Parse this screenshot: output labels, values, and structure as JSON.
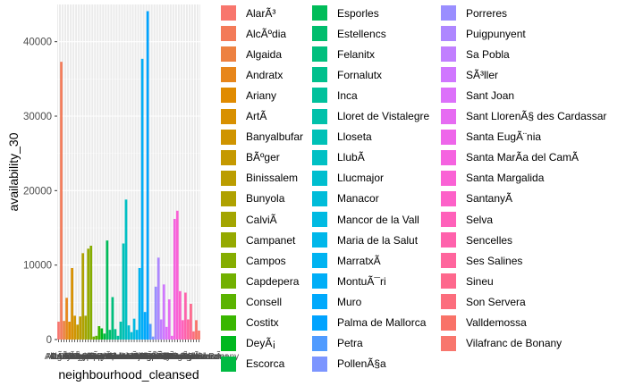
{
  "chart_data": {
    "type": "bar",
    "xlabel": "neighbourhood_cleansed",
    "ylabel": "availability_30",
    "ylim": [
      0,
      45000
    ],
    "yticks": [
      0,
      10000,
      20000,
      30000,
      40000
    ],
    "yticklabels": [
      "0",
      "10000",
      "20000",
      "30000",
      "40000"
    ],
    "grid": true,
    "legend_position": "right",
    "categories": [
      "AlarÃ³",
      "AlcÃºdia",
      "Algaida",
      "Andratx",
      "Ariany",
      "ArtÃ",
      "Banyalbufar",
      "BÃºger",
      "Binissalem",
      "Bunyola",
      "CalviÃ",
      "Campanet",
      "Campos",
      "Capdepera",
      "Consell",
      "Costitx",
      "DeyÃ¡",
      "Escorca",
      "Esporles",
      "Estellencs",
      "Felanitx",
      "Fornalutx",
      "Inca",
      "Lloret de Vistalegre",
      "Lloseta",
      "LlubÃ­",
      "Llucmajor",
      "Manacor",
      "Mancor de la Vall",
      "Maria de la Salut",
      "MarratxÃ­",
      "MontuÃ¯ri",
      "Muro",
      "Palma de Mallorca",
      "Petra",
      "PollenÃ§a",
      "Porreres",
      "Puigpunyent",
      "Sa Pobla",
      "SÃ³ller",
      "Sant Joan",
      "Sant LlorenÃ§ des Cardassar",
      "Santa EugÃ¨nia",
      "Santa MarÃ­a del CamÃ­",
      "Santa Margalida",
      "SantanyÃ­",
      "Selva",
      "Sencelles",
      "Ses Salines",
      "Sineu",
      "Son Servera",
      "Valldemossa",
      "Vilafranc de Bonany"
    ],
    "values": [
      2400,
      37300,
      2500,
      5600,
      2400,
      9600,
      3200,
      2000,
      3100,
      11600,
      3200,
      12200,
      12600,
      400,
      500,
      1800,
      1500,
      800,
      13300,
      1300,
      5700,
      1400,
      500,
      2400,
      12900,
      18800,
      1900,
      1000,
      2800,
      1300,
      9600,
      37700,
      3700,
      44100,
      2100,
      400,
      7100,
      11000,
      2700,
      7400,
      1700,
      5400,
      500,
      16200,
      17300,
      6500,
      2600,
      6300,
      2700,
      4800,
      1100,
      2600,
      1200
    ],
    "colors": [
      "#F8766D",
      "#F37B59",
      "#ED8141",
      "#E7861B",
      "#E08B00",
      "#D89000",
      "#CF9400",
      "#C59900",
      "#BB9D00",
      "#AFA100",
      "#A3A500",
      "#95A900",
      "#85AD00",
      "#72B000",
      "#5BB300",
      "#39B600",
      "#00B81F",
      "#00BA42",
      "#00BC59",
      "#00BD6D",
      "#00BF7D",
      "#00C08D",
      "#00C19C",
      "#00C1AA",
      "#00C1B7",
      "#00C0C4",
      "#00BECF",
      "#00BCD9",
      "#00BAE2",
      "#00B7EA",
      "#00B3F1",
      "#00AEF7",
      "#00A9FC",
      "#00A3FF",
      "#509BFF",
      "#7C95FF",
      "#9A8EFF",
      "#AE87FF",
      "#C17FFF",
      "#D077FF",
      "#DC71FA",
      "#E66BF2",
      "#EE66EA",
      "#F563E0",
      "#FA62D5",
      "#FD61C8",
      "#FF61BA",
      "#FF62AC",
      "#FF659D",
      "#FE688D",
      "#FC6D7D",
      "#F97268",
      "#F8766D"
    ]
  }
}
